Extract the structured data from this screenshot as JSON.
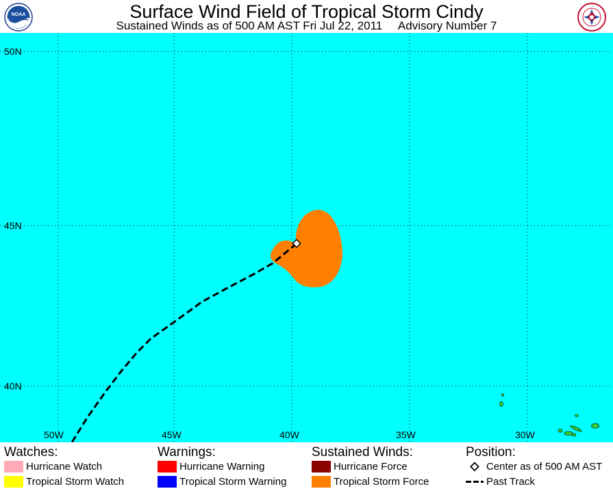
{
  "header": {
    "title": "Surface Wind Field of Tropical Storm Cindy",
    "subtitle": "Sustained Winds as of 500 AM AST Fri Jul 22, 2011     Advisory Number 7",
    "logos": [
      "noaa-logo",
      "nws-logo"
    ],
    "logo_text": [
      "NOAA",
      "NATIONAL WEATHER SERVICE"
    ]
  },
  "map": {
    "background_color": "#00FFFF",
    "lat_labels": [
      "50N",
      "45N",
      "40N"
    ],
    "lon_labels": [
      "50W",
      "45W",
      "40W",
      "35W",
      "30W"
    ],
    "gridlines": "dotted",
    "track_style": "dashed-black",
    "center_marker": "white-diamond",
    "wind_field_color": "#FF8000",
    "land_color": "#33CC33"
  },
  "legend": {
    "watches": {
      "heading": "Watches:",
      "items": [
        {
          "label": "Hurricane Watch",
          "color": "#FFAAB4"
        },
        {
          "label": "Tropical Storm Watch",
          "color": "#FFFF00"
        }
      ]
    },
    "warnings": {
      "heading": "Warnings:",
      "items": [
        {
          "label": "Hurricane Warning",
          "color": "#FF0000"
        },
        {
          "label": "Tropical Storm Warning",
          "color": "#0000FF"
        }
      ]
    },
    "winds": {
      "heading": "Sustained Winds:",
      "items": [
        {
          "label": "Hurricane Force",
          "color": "#8B0000"
        },
        {
          "label": "Tropical Storm Force",
          "color": "#FF8000"
        }
      ]
    },
    "position": {
      "heading": "Position:",
      "items": [
        {
          "label": "Center as of 500 AM AST",
          "icon": "diamond-icon"
        },
        {
          "label": "Past Track",
          "icon": "dashed-line-icon"
        }
      ]
    }
  }
}
